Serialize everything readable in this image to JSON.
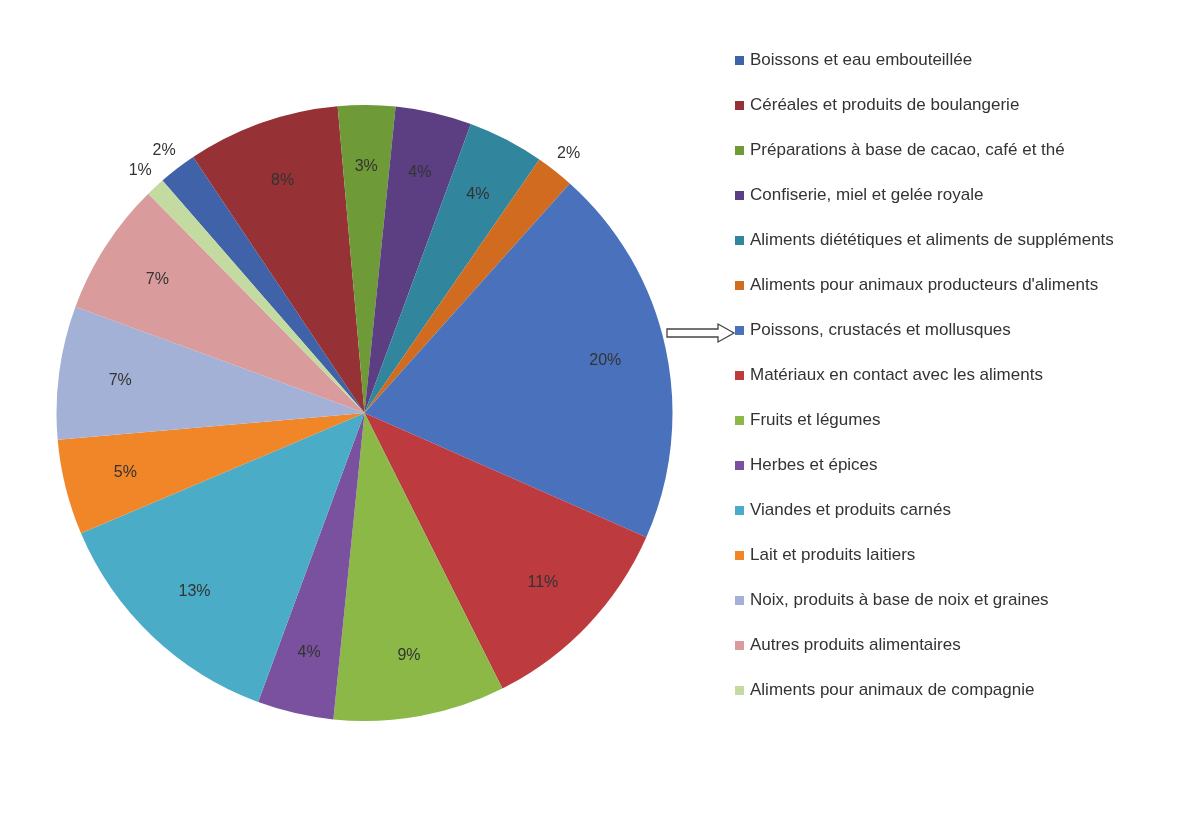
{
  "chart_data": {
    "type": "pie",
    "legend": "right",
    "categories": [
      "Boissons et eau embouteillée",
      "Céréales et produits de boulangerie",
      "Préparations à base de cacao, café et thé",
      "Confiserie, miel et gelée royale",
      "Aliments diététiques et aliments de suppléments",
      "Aliments pour animaux producteurs d'aliments",
      "Poissons, crustacés et mollusques",
      "Matériaux en contact avec les aliments",
      "Fruits et légumes",
      "Herbes et épices",
      "Viandes et produits carnés",
      "Lait et produits laitiers",
      "Noix, produits à base de noix et graines",
      "Autres produits alimentaires",
      "Aliments pour animaux de compagnie"
    ],
    "values": [
      2,
      8,
      3,
      4,
      4,
      2,
      20,
      11,
      9,
      4,
      13,
      5,
      7,
      7,
      1
    ],
    "value_labels": [
      "2%",
      "8%",
      "3%",
      "4%",
      "4%",
      "2%",
      "20%",
      "11%",
      "9%",
      "4%",
      "13%",
      "5%",
      "7%",
      "7%",
      "1%"
    ],
    "colors": [
      "#3f62a8",
      "#963135",
      "#6e9a37",
      "#5b3f82",
      "#31859c",
      "#d06b1f",
      "#4a72bc",
      "#bd3a3f",
      "#8cb848",
      "#7a519e",
      "#4aacc6",
      "#f18628",
      "#a4b1d6",
      "#d99b9b",
      "#c3dba0"
    ]
  }
}
